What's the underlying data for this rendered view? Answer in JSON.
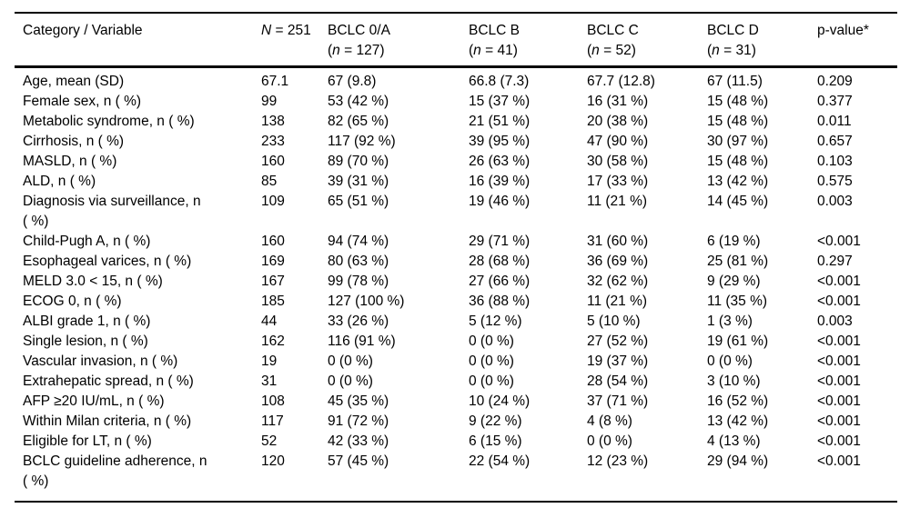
{
  "colors": {
    "background": "#ffffff",
    "text": "#000000",
    "rule": "#000000"
  },
  "table": {
    "header": {
      "category": "Category / Variable",
      "total": {
        "symbol": "N",
        "rest": " = 251"
      },
      "groups": [
        {
          "name": "BCLC 0/A",
          "sub_pre": "(",
          "sub_symbol": "n",
          "sub_post": " = 127)"
        },
        {
          "name": "BCLC B",
          "sub_pre": "(",
          "sub_symbol": "n",
          "sub_post": " = 41)"
        },
        {
          "name": "BCLC C",
          "sub_pre": "(",
          "sub_symbol": "n",
          "sub_post": " = 52)"
        },
        {
          "name": "BCLC D",
          "sub_pre": "(",
          "sub_symbol": "n",
          "sub_post": " = 31)"
        }
      ],
      "pvalue": "p-value*"
    },
    "rows": [
      {
        "label": "Age, mean (SD)",
        "total": "67.1",
        "values": [
          "67 (9.8)",
          "66.8 (7.3)",
          "67.7 (12.8)",
          "67 (11.5)"
        ],
        "p": "0.209"
      },
      {
        "label": "Female sex, n ( %)",
        "total": "99",
        "values": [
          "53 (42 %)",
          "15 (37 %)",
          "16 (31 %)",
          "15 (48 %)"
        ],
        "p": "0.377"
      },
      {
        "label": "Metabolic syndrome, n ( %)",
        "total": "138",
        "values": [
          "82 (65 %)",
          "21 (51 %)",
          "20 (38 %)",
          "15 (48 %)"
        ],
        "p": "0.011"
      },
      {
        "label": "Cirrhosis, n ( %)",
        "total": "233",
        "values": [
          "117 (92 %)",
          "39 (95 %)",
          "47 (90 %)",
          "30 (97 %)"
        ],
        "p": "0.657"
      },
      {
        "label": "MASLD, n ( %)",
        "total": "160",
        "values": [
          "89 (70 %)",
          "26 (63 %)",
          "30 (58 %)",
          "15 (48 %)"
        ],
        "p": "0.103"
      },
      {
        "label": "ALD, n ( %)",
        "total": "85",
        "values": [
          "39 (31 %)",
          "16 (39 %)",
          "17 (33 %)",
          "13 (42 %)"
        ],
        "p": "0.575"
      },
      {
        "label": "Diagnosis via surveillance, n",
        "label2": "( %)",
        "total": "109",
        "values": [
          "65 (51 %)",
          "19 (46 %)",
          "11 (21 %)",
          "14 (45 %)"
        ],
        "p": "0.003"
      },
      {
        "label": "Child-Pugh A, n ( %)",
        "total": "160",
        "values": [
          "94 (74 %)",
          "29 (71 %)",
          "31 (60 %)",
          "6 (19 %)"
        ],
        "p": "<0.001"
      },
      {
        "label": "Esophageal varices, n ( %)",
        "total": "169",
        "values": [
          "80 (63 %)",
          "28 (68 %)",
          "36 (69 %)",
          "25 (81 %)"
        ],
        "p": "0.297"
      },
      {
        "label": "MELD 3.0 < 15, n ( %)",
        "total": "167",
        "values": [
          "99 (78 %)",
          "27 (66 %)",
          "32 (62 %)",
          "9 (29 %)"
        ],
        "p": "<0.001"
      },
      {
        "label": "ECOG 0, n ( %)",
        "total": "185",
        "values": [
          "127 (100 %)",
          "36 (88 %)",
          "11 (21 %)",
          "11 (35 %)"
        ],
        "p": "<0.001"
      },
      {
        "label": "ALBI grade 1, n ( %)",
        "total": "44",
        "values": [
          "33 (26 %)",
          "5 (12 %)",
          "5 (10 %)",
          "1 (3 %)"
        ],
        "p": "0.003"
      },
      {
        "label": "Single lesion, n ( %)",
        "total": "162",
        "values": [
          "116 (91 %)",
          "0 (0 %)",
          "27 (52 %)",
          "19 (61 %)"
        ],
        "p": "<0.001"
      },
      {
        "label": "Vascular invasion, n ( %)",
        "total": "19",
        "values": [
          "0 (0 %)",
          "0 (0 %)",
          "19 (37 %)",
          "0 (0 %)"
        ],
        "p": "<0.001"
      },
      {
        "label": "Extrahepatic spread, n ( %)",
        "total": "31",
        "values": [
          "0 (0 %)",
          "0 (0 %)",
          "28 (54 %)",
          "3 (10 %)"
        ],
        "p": "<0.001"
      },
      {
        "label": "AFP ≥20 IU/mL, n ( %)",
        "total": "108",
        "values": [
          "45 (35 %)",
          "10 (24 %)",
          "37 (71 %)",
          "16 (52 %)"
        ],
        "p": "<0.001"
      },
      {
        "label": "Within Milan criteria, n ( %)",
        "total": "117",
        "values": [
          "91 (72 %)",
          "9 (22 %)",
          "4 (8 %)",
          "13 (42 %)"
        ],
        "p": "<0.001"
      },
      {
        "label": "Eligible for LT, n ( %)",
        "total": "52",
        "values": [
          "42 (33 %)",
          "6 (15 %)",
          "0 (0 %)",
          "4 (13 %)"
        ],
        "p": "<0.001"
      },
      {
        "label": "BCLC guideline adherence, n",
        "label2": "( %)",
        "total": "120",
        "values": [
          "57 (45 %)",
          "22 (54 %)",
          "12 (23 %)",
          "29 (94 %)"
        ],
        "p": "<0.001"
      }
    ]
  }
}
